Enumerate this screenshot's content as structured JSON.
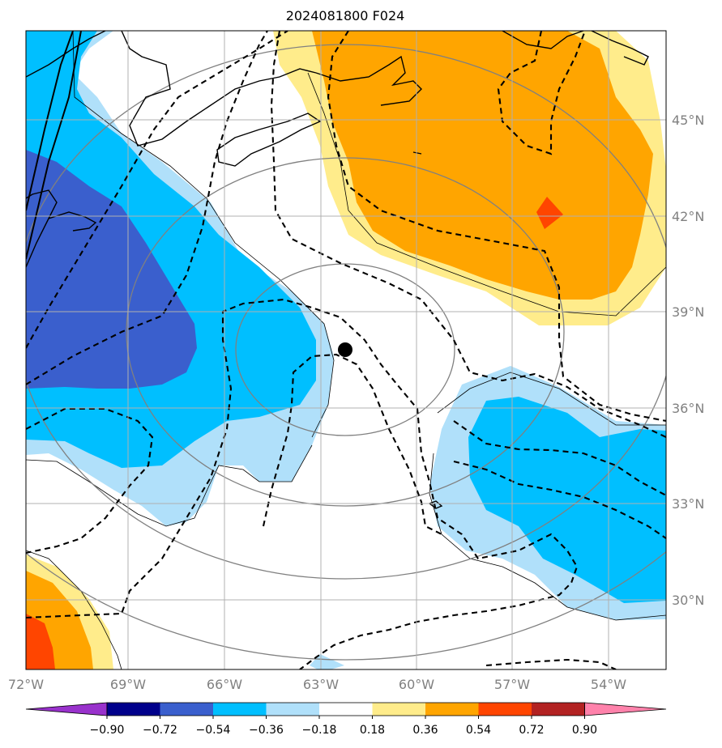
{
  "title": "2024081800 F024",
  "map": {
    "lon_range": [
      -72,
      -52
    ],
    "lat_range": [
      28,
      48
    ],
    "storm_center": {
      "lon": -62.2,
      "lat": 37.7
    },
    "lon_ticks": [
      {
        "value": -72,
        "label": "72°W"
      },
      {
        "value": -69,
        "label": "69°W"
      },
      {
        "value": -66,
        "label": "66°W"
      },
      {
        "value": -63,
        "label": "63°W"
      },
      {
        "value": -60,
        "label": "60°W"
      },
      {
        "value": -57,
        "label": "57°W"
      },
      {
        "value": -54,
        "label": "54°W"
      }
    ],
    "lat_ticks": [
      {
        "value": 45,
        "label": "45°N"
      },
      {
        "value": 42,
        "label": "42°N"
      },
      {
        "value": 39,
        "label": "39°N"
      },
      {
        "value": 36,
        "label": "36°N"
      },
      {
        "value": 33,
        "label": "33°N"
      },
      {
        "value": 30,
        "label": "30°N"
      }
    ],
    "field_colors": {
      "strong_positive": "#ff4500",
      "moderate_positive": "#ffa500",
      "weak_positive": "#ffec8b",
      "neutral": "#ffffff",
      "weak_negative": "#b0e0fa",
      "moderate_negative": "#00bfff",
      "strong_negative": "#3a5fcd"
    }
  },
  "colorbar": {
    "colors": [
      "#9932cc",
      "#00008b",
      "#3a5fcd",
      "#00bfff",
      "#b0e0fa",
      "#ffffff",
      "#ffec8b",
      "#ffa500",
      "#ff4500",
      "#b22222",
      "#ff82ab"
    ],
    "labels": [
      "−0.90",
      "−0.72",
      "−0.54",
      "−0.36",
      "−0.18",
      "0.18",
      "0.36",
      "0.54",
      "0.72",
      "0.90"
    ]
  }
}
